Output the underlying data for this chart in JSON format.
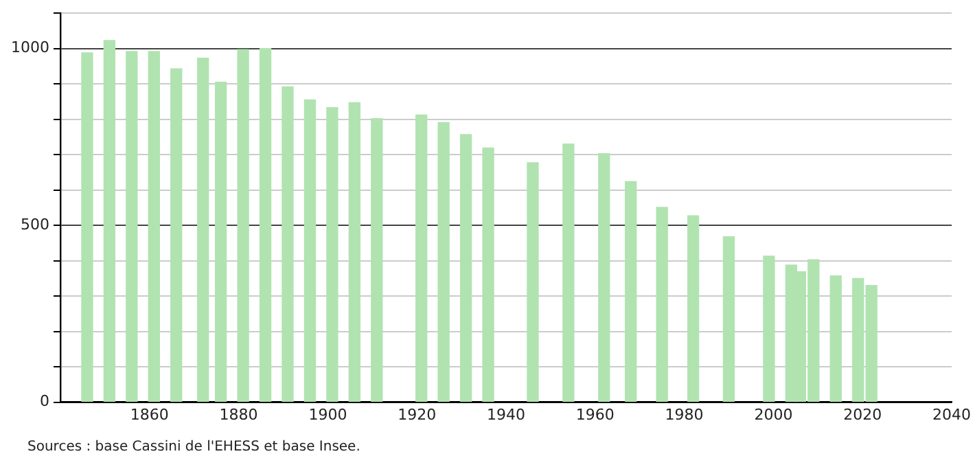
{
  "chart_data": {
    "type": "bar",
    "x": [
      1846,
      1851,
      1856,
      1861,
      1866,
      1872,
      1876,
      1881,
      1886,
      1891,
      1896,
      1901,
      1906,
      1911,
      1921,
      1926,
      1931,
      1936,
      1946,
      1954,
      1962,
      1968,
      1975,
      1982,
      1990,
      1999,
      2004,
      2006,
      2009,
      2014,
      2019,
      2022
    ],
    "values": [
      988,
      1023,
      992,
      992,
      943,
      973,
      905,
      997,
      1000,
      892,
      855,
      833,
      847,
      802,
      812,
      791,
      757,
      719,
      677,
      730,
      703,
      624,
      551,
      527,
      468,
      413,
      388,
      369,
      403,
      357,
      350,
      330
    ],
    "color": "#b0e3b0",
    "xlim": [
      1840,
      2040
    ],
    "xticks": [
      1860,
      1880,
      1900,
      1920,
      1940,
      1960,
      1980,
      2000,
      2020,
      2040
    ],
    "ylim": [
      0,
      1100
    ],
    "yticks": [
      0,
      {
        "value": 100,
        "label": null
      },
      {
        "value": 200,
        "label": null
      },
      {
        "value": 300,
        "label": null
      },
      {
        "value": 400,
        "label": null
      },
      500,
      {
        "value": 600,
        "label": null
      },
      {
        "value": 700,
        "label": null
      },
      {
        "value": 800,
        "label": null
      },
      {
        "value": 900,
        "label": null
      },
      1000,
      {
        "value": 1100,
        "label": null
      }
    ],
    "grid": "y",
    "legend": false,
    "annotations": [
      "Sources : base Cassini de l'EHESS et base Insee."
    ]
  }
}
